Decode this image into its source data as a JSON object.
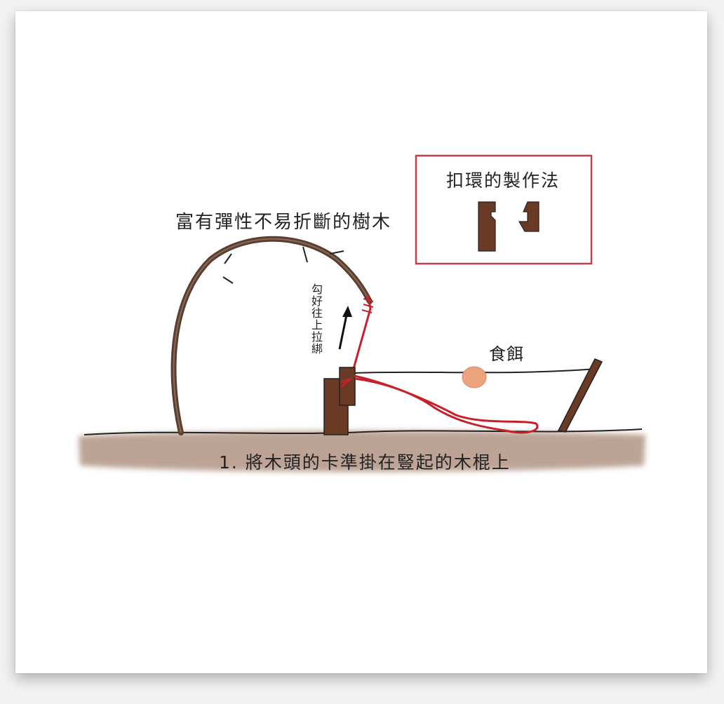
{
  "colors": {
    "ground": "#b59a8a",
    "branch": "#5a3e30",
    "wood": "#6b3a24",
    "string": "#c8202a",
    "bait": "#eca27c",
    "frame": "#c0404a"
  },
  "labels": {
    "tree": "富有彈性不易折斷的樹木",
    "hook": "勾好往上拉綁",
    "bait": "食餌",
    "step": "1. 將木頭的卡準掛在豎起的木棍上"
  },
  "inset": {
    "title": "扣環的製作法"
  }
}
